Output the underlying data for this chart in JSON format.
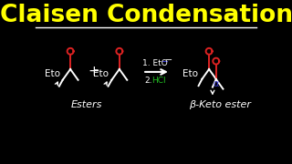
{
  "title": "Claisen Condensation",
  "title_color": "#FFFF00",
  "title_fontsize": 19,
  "bg_color": "#000000",
  "white": "#FFFFFF",
  "red": "#DD2222",
  "green": "#22BB22",
  "blue": "#3333CC",
  "esters_label": "Esters",
  "product_label": "β-Keto ester",
  "reagent1": "1. EtO",
  "reagent1_sup": "−",
  "reagent2": "2.",
  "reagent2_hcl": "HCl"
}
